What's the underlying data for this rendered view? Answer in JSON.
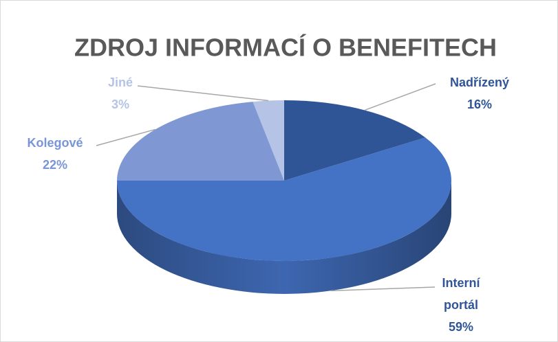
{
  "chart_data": {
    "type": "pie",
    "title": "ZDROJ INFORMACÍ O BENEFITECH",
    "categories": [
      "Nadřízený",
      "Interní portál",
      "Kolegové",
      "Jiné"
    ],
    "values": [
      16,
      59,
      22,
      3
    ],
    "value_labels": [
      "16%",
      "59%",
      "22%",
      "3%"
    ],
    "colors": [
      "#2f5597",
      "#4472c4",
      "#7f98d3",
      "#b4c3e6"
    ],
    "label_colors": [
      "#2f5597",
      "#2f5597",
      "#7895d8",
      "#b4c3e6"
    ]
  }
}
